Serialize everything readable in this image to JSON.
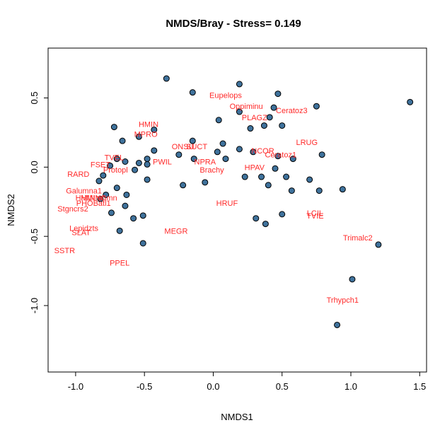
{
  "chart_data": {
    "type": "scatter",
    "title": "NMDS/Bray - Stress= 0.149",
    "xlabel": "NMDS1",
    "ylabel": "NMDS2",
    "xlim": [
      -1.2,
      1.55
    ],
    "ylim": [
      -1.48,
      0.86
    ],
    "x_ticks": [
      -1.0,
      -0.5,
      0.0,
      0.5,
      1.0,
      1.5
    ],
    "x_tick_labels": [
      "-1.0",
      "-0.5",
      "0.0",
      "0.5",
      "1.0",
      "1.5"
    ],
    "y_ticks": [
      -1.0,
      -0.5,
      0.0,
      0.5
    ],
    "y_tick_labels": [
      "-1.0",
      "-0.5",
      "0.0",
      "0.5"
    ],
    "grid": false,
    "point_color": "#3f729c",
    "label_color": "#ff2a2a",
    "sites": [
      {
        "x": -0.34,
        "y": 0.64
      },
      {
        "x": -0.15,
        "y": 0.54
      },
      {
        "x": 0.19,
        "y": 0.6
      },
      {
        "x": 0.47,
        "y": 0.53
      },
      {
        "x": 1.43,
        "y": 0.47
      },
      {
        "x": 0.75,
        "y": 0.44
      },
      {
        "x": 0.44,
        "y": 0.43
      },
      {
        "x": 0.19,
        "y": 0.4
      },
      {
        "x": 0.41,
        "y": 0.36
      },
      {
        "x": 0.04,
        "y": 0.34
      },
      {
        "x": -0.72,
        "y": 0.29
      },
      {
        "x": 0.37,
        "y": 0.3
      },
      {
        "x": 0.5,
        "y": 0.3
      },
      {
        "x": 0.27,
        "y": 0.28
      },
      {
        "x": -0.43,
        "y": 0.27
      },
      {
        "x": -0.54,
        "y": 0.22
      },
      {
        "x": -0.66,
        "y": 0.19
      },
      {
        "x": -0.15,
        "y": 0.19
      },
      {
        "x": 0.07,
        "y": 0.17
      },
      {
        "x": -0.43,
        "y": 0.12
      },
      {
        "x": 0.19,
        "y": 0.13
      },
      {
        "x": 0.03,
        "y": 0.11
      },
      {
        "x": 0.29,
        "y": 0.11
      },
      {
        "x": 0.79,
        "y": 0.09
      },
      {
        "x": -0.25,
        "y": 0.09
      },
      {
        "x": 0.47,
        "y": 0.08
      },
      {
        "x": 0.58,
        "y": 0.06
      },
      {
        "x": -0.14,
        "y": 0.06
      },
      {
        "x": 0.09,
        "y": 0.06
      },
      {
        "x": -0.7,
        "y": 0.06
      },
      {
        "x": -0.48,
        "y": 0.06
      },
      {
        "x": -0.64,
        "y": 0.04
      },
      {
        "x": -0.54,
        "y": 0.03
      },
      {
        "x": -0.48,
        "y": 0.02
      },
      {
        "x": -0.75,
        "y": 0.01
      },
      {
        "x": -0.57,
        "y": -0.02
      },
      {
        "x": 0.45,
        "y": -0.01
      },
      {
        "x": -0.8,
        "y": -0.06
      },
      {
        "x": 0.23,
        "y": -0.07
      },
      {
        "x": 0.53,
        "y": -0.07
      },
      {
        "x": 0.35,
        "y": -0.07
      },
      {
        "x": -0.48,
        "y": -0.09
      },
      {
        "x": 0.7,
        "y": -0.09
      },
      {
        "x": -0.83,
        "y": -0.1
      },
      {
        "x": -0.06,
        "y": -0.11
      },
      {
        "x": -0.22,
        "y": -0.13
      },
      {
        "x": 0.4,
        "y": -0.13
      },
      {
        "x": -0.7,
        "y": -0.15
      },
      {
        "x": 0.94,
        "y": -0.16
      },
      {
        "x": 0.57,
        "y": -0.17
      },
      {
        "x": 0.77,
        "y": -0.17
      },
      {
        "x": -0.63,
        "y": -0.2
      },
      {
        "x": -0.78,
        "y": -0.2
      },
      {
        "x": -0.82,
        "y": -0.23
      },
      {
        "x": -0.64,
        "y": -0.28
      },
      {
        "x": -0.74,
        "y": -0.33
      },
      {
        "x": -0.58,
        "y": -0.37
      },
      {
        "x": -0.51,
        "y": -0.35
      },
      {
        "x": 0.5,
        "y": -0.34
      },
      {
        "x": 0.31,
        "y": -0.37
      },
      {
        "x": 0.38,
        "y": -0.41
      },
      {
        "x": -0.68,
        "y": -0.46
      },
      {
        "x": -0.51,
        "y": -0.55
      },
      {
        "x": 1.2,
        "y": -0.56
      },
      {
        "x": 1.01,
        "y": -0.81
      },
      {
        "x": 0.9,
        "y": -1.14
      }
    ],
    "species": [
      {
        "label": "Eupelops",
        "x": 0.09,
        "y": 0.52
      },
      {
        "label": "Oppiminu",
        "x": 0.24,
        "y": 0.44
      },
      {
        "label": "Ceratoz3",
        "x": 0.57,
        "y": 0.41
      },
      {
        "label": "PLAGZ",
        "x": 0.3,
        "y": 0.36
      },
      {
        "label": "HMIN",
        "x": -0.47,
        "y": 0.31
      },
      {
        "label": "MPRO",
        "x": -0.49,
        "y": 0.24
      },
      {
        "label": "LRUG",
        "x": 0.68,
        "y": 0.18
      },
      {
        "label": "ONSU",
        "x": -0.22,
        "y": 0.15
      },
      {
        "label": "SUCT",
        "x": -0.12,
        "y": 0.15
      },
      {
        "label": "NCOR",
        "x": 0.36,
        "y": 0.12
      },
      {
        "label": "Ceratoz1",
        "x": 0.49,
        "y": 0.09
      },
      {
        "label": "TVEL",
        "x": -0.72,
        "y": 0.07
      },
      {
        "label": "PWIL",
        "x": -0.37,
        "y": 0.04
      },
      {
        "label": "NPRA",
        "x": -0.06,
        "y": 0.04
      },
      {
        "label": "FSET",
        "x": -0.82,
        "y": 0.02
      },
      {
        "label": "HPAV",
        "x": 0.3,
        "y": 0.0
      },
      {
        "label": "Protopl",
        "x": -0.71,
        "y": -0.02
      },
      {
        "label": "Brachy",
        "x": -0.01,
        "y": -0.02
      },
      {
        "label": "RARD",
        "x": -0.98,
        "y": -0.05
      },
      {
        "label": "Galumna1",
        "x": -0.94,
        "y": -0.17
      },
      {
        "label": "HMINmn",
        "x": -0.89,
        "y": -0.22
      },
      {
        "label": "HMINCmn",
        "x": -0.83,
        "y": -0.22
      },
      {
        "label": "PHOBatl1",
        "x": -0.87,
        "y": -0.26
      },
      {
        "label": "HRUF",
        "x": 0.1,
        "y": -0.26
      },
      {
        "label": "Stgncrs2",
        "x": -1.02,
        "y": -0.3
      },
      {
        "label": "LCIL",
        "x": 0.74,
        "y": -0.33
      },
      {
        "label": "TVIE",
        "x": 0.74,
        "y": -0.35
      },
      {
        "label": "Lepidzts",
        "x": -0.94,
        "y": -0.44
      },
      {
        "label": "SLAT",
        "x": -0.96,
        "y": -0.47
      },
      {
        "label": "MEGR",
        "x": -0.27,
        "y": -0.46
      },
      {
        "label": "Trimalc2",
        "x": 1.05,
        "y": -0.51
      },
      {
        "label": "SSTR",
        "x": -1.08,
        "y": -0.6
      },
      {
        "label": "PPEL",
        "x": -0.68,
        "y": -0.69
      },
      {
        "label": "Trhypch1",
        "x": 0.94,
        "y": -0.96
      }
    ]
  }
}
